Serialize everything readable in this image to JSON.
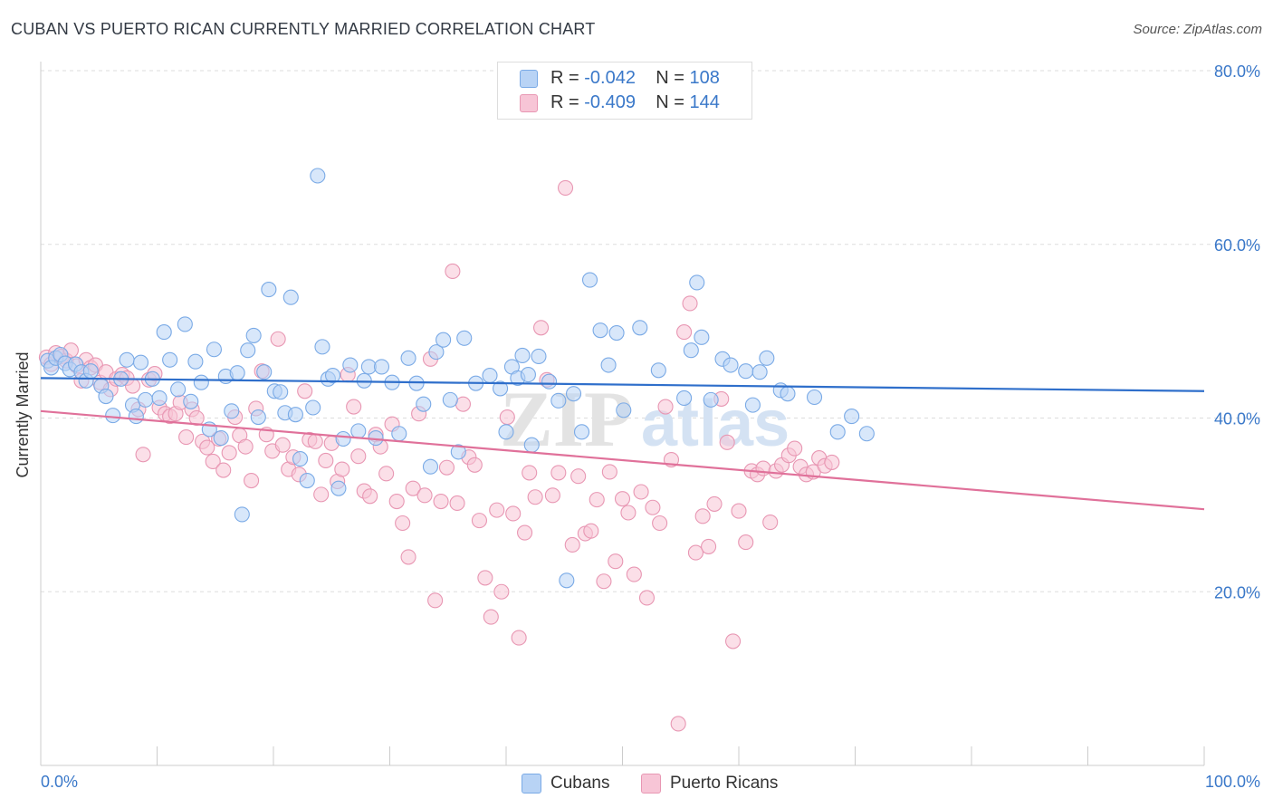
{
  "header": {
    "title": "CUBAN VS PUERTO RICAN CURRENTLY MARRIED CORRELATION CHART",
    "source": "Source: ZipAtlas.com"
  },
  "legend": {
    "rows": [
      {
        "r_label": "R = ",
        "r_value": "-0.042",
        "n_label": "N = ",
        "n_value": "108"
      },
      {
        "r_label": "R = ",
        "r_value": "-0.409",
        "n_label": "N = ",
        "n_value": "144"
      }
    ]
  },
  "watermark": {
    "zip": "ZIP",
    "atlas": "atlas"
  },
  "colors": {
    "cuban_fill": "#b8d3f5",
    "cuban_stroke": "#7aaae6",
    "cuban_line": "#2f6fcb",
    "pr_fill": "#f7c5d6",
    "pr_stroke": "#e897b3",
    "pr_line": "#e0719a",
    "grid": "#dddddd",
    "tick_text": "#3a78c9"
  },
  "chart_data": {
    "type": "scatter",
    "title": "CUBAN VS PUERTO RICAN CURRENTLY MARRIED CORRELATION CHART",
    "xlabel": "",
    "ylabel": "Currently Married",
    "xlim": [
      0,
      100
    ],
    "ylim": [
      0,
      80
    ],
    "x_tick_labels": [
      "0.0%",
      "100.0%"
    ],
    "y_ticks": [
      20,
      40,
      60,
      80
    ],
    "y_tick_labels": [
      "20.0%",
      "40.0%",
      "60.0%",
      "80.0%"
    ],
    "grid": true,
    "legend_position": "top-center",
    "series": [
      {
        "name": "Cubans",
        "r": -0.042,
        "n": 108,
        "trend": {
          "x": [
            0,
            100
          ],
          "y": [
            44.6,
            43.1
          ]
        },
        "points": [
          [
            0.6,
            46.6
          ],
          [
            0.9,
            45.8
          ],
          [
            1.3,
            46.9
          ],
          [
            1.7,
            47.3
          ],
          [
            2.1,
            46.3
          ],
          [
            2.5,
            45.6
          ],
          [
            3.0,
            46.2
          ],
          [
            3.5,
            45.3
          ],
          [
            3.9,
            44.3
          ],
          [
            4.3,
            45.4
          ],
          [
            5.2,
            43.7
          ],
          [
            5.6,
            42.5
          ],
          [
            6.2,
            40.3
          ],
          [
            6.9,
            44.5
          ],
          [
            7.4,
            46.7
          ],
          [
            7.9,
            41.5
          ],
          [
            8.2,
            40.2
          ],
          [
            8.6,
            46.4
          ],
          [
            9.0,
            42.1
          ],
          [
            9.6,
            44.5
          ],
          [
            10.2,
            42.3
          ],
          [
            10.6,
            49.9
          ],
          [
            11.1,
            46.7
          ],
          [
            11.8,
            43.3
          ],
          [
            12.4,
            50.8
          ],
          [
            12.9,
            41.9
          ],
          [
            13.3,
            46.5
          ],
          [
            13.8,
            44.1
          ],
          [
            14.5,
            38.7
          ],
          [
            14.9,
            47.9
          ],
          [
            15.5,
            37.7
          ],
          [
            15.9,
            44.8
          ],
          [
            16.4,
            40.8
          ],
          [
            16.9,
            45.2
          ],
          [
            17.3,
            28.9
          ],
          [
            17.8,
            47.8
          ],
          [
            18.3,
            49.5
          ],
          [
            18.7,
            40.1
          ],
          [
            19.2,
            45.3
          ],
          [
            19.6,
            54.8
          ],
          [
            20.1,
            43.1
          ],
          [
            20.6,
            43.0
          ],
          [
            21.0,
            40.6
          ],
          [
            21.5,
            53.9
          ],
          [
            21.9,
            40.4
          ],
          [
            22.3,
            35.3
          ],
          [
            22.9,
            32.8
          ],
          [
            23.4,
            41.2
          ],
          [
            23.8,
            67.9
          ],
          [
            24.2,
            48.2
          ],
          [
            24.7,
            44.5
          ],
          [
            25.1,
            44.9
          ],
          [
            25.6,
            31.9
          ],
          [
            26.0,
            37.6
          ],
          [
            26.6,
            46.1
          ],
          [
            27.3,
            38.5
          ],
          [
            27.8,
            44.3
          ],
          [
            28.2,
            45.9
          ],
          [
            28.8,
            37.7
          ],
          [
            29.3,
            45.9
          ],
          [
            30.2,
            44.1
          ],
          [
            30.8,
            38.2
          ],
          [
            31.6,
            46.9
          ],
          [
            32.3,
            44.0
          ],
          [
            32.9,
            41.6
          ],
          [
            33.5,
            34.4
          ],
          [
            34.0,
            47.6
          ],
          [
            34.6,
            49.0
          ],
          [
            35.2,
            42.1
          ],
          [
            35.9,
            36.1
          ],
          [
            36.4,
            49.2
          ],
          [
            37.4,
            44.0
          ],
          [
            38.6,
            44.9
          ],
          [
            39.5,
            43.4
          ],
          [
            40.0,
            38.4
          ],
          [
            40.5,
            45.9
          ],
          [
            41.0,
            44.6
          ],
          [
            41.4,
            47.2
          ],
          [
            41.9,
            45.0
          ],
          [
            42.2,
            36.9
          ],
          [
            42.8,
            47.1
          ],
          [
            43.7,
            44.2
          ],
          [
            44.5,
            42.0
          ],
          [
            45.2,
            21.3
          ],
          [
            45.8,
            42.8
          ],
          [
            46.5,
            38.4
          ],
          [
            47.2,
            55.9
          ],
          [
            48.1,
            50.1
          ],
          [
            48.8,
            46.1
          ],
          [
            49.5,
            49.8
          ],
          [
            50.1,
            40.9
          ],
          [
            51.5,
            50.4
          ],
          [
            53.1,
            45.5
          ],
          [
            55.3,
            42.3
          ],
          [
            55.9,
            47.8
          ],
          [
            56.4,
            55.6
          ],
          [
            56.8,
            49.3
          ],
          [
            57.6,
            42.1
          ],
          [
            58.6,
            46.8
          ],
          [
            59.3,
            46.1
          ],
          [
            60.6,
            45.4
          ],
          [
            61.2,
            41.5
          ],
          [
            61.8,
            45.3
          ],
          [
            62.4,
            46.9
          ],
          [
            63.6,
            43.2
          ],
          [
            64.2,
            42.8
          ],
          [
            66.5,
            42.4
          ],
          [
            68.5,
            38.4
          ],
          [
            69.7,
            40.2
          ],
          [
            71.0,
            38.2
          ]
        ]
      },
      {
        "name": "Puerto Ricans",
        "r": -0.409,
        "n": 144,
        "trend": {
          "x": [
            0,
            100
          ],
          "y": [
            40.8,
            29.5
          ]
        },
        "points": [
          [
            0.5,
            47.0
          ],
          [
            0.9,
            46.2
          ],
          [
            1.3,
            47.5
          ],
          [
            1.8,
            47.1
          ],
          [
            2.2,
            46.6
          ],
          [
            2.6,
            47.8
          ],
          [
            3.1,
            46.0
          ],
          [
            3.5,
            44.3
          ],
          [
            3.9,
            46.7
          ],
          [
            4.3,
            45.8
          ],
          [
            4.7,
            46.1
          ],
          [
            5.1,
            44.1
          ],
          [
            5.6,
            45.3
          ],
          [
            6.0,
            43.3
          ],
          [
            6.5,
            44.5
          ],
          [
            7.0,
            45.0
          ],
          [
            7.4,
            44.6
          ],
          [
            7.9,
            43.7
          ],
          [
            8.4,
            41.0
          ],
          [
            8.8,
            35.8
          ],
          [
            9.3,
            44.4
          ],
          [
            9.8,
            45.1
          ],
          [
            10.2,
            41.2
          ],
          [
            10.7,
            40.5
          ],
          [
            11.1,
            40.2
          ],
          [
            11.6,
            40.5
          ],
          [
            12.0,
            41.8
          ],
          [
            12.5,
            37.8
          ],
          [
            13.0,
            41.0
          ],
          [
            13.4,
            40.0
          ],
          [
            13.9,
            37.3
          ],
          [
            14.3,
            36.6
          ],
          [
            14.8,
            35.0
          ],
          [
            15.3,
            37.6
          ],
          [
            15.7,
            34.0
          ],
          [
            16.2,
            36.0
          ],
          [
            16.7,
            40.1
          ],
          [
            17.1,
            38.0
          ],
          [
            17.6,
            36.7
          ],
          [
            18.1,
            32.8
          ],
          [
            18.5,
            41.1
          ],
          [
            19.0,
            45.4
          ],
          [
            19.4,
            38.1
          ],
          [
            19.9,
            36.2
          ],
          [
            20.4,
            49.1
          ],
          [
            20.8,
            36.9
          ],
          [
            21.3,
            34.1
          ],
          [
            21.7,
            35.5
          ],
          [
            22.2,
            33.5
          ],
          [
            22.7,
            43.1
          ],
          [
            23.1,
            37.5
          ],
          [
            23.6,
            37.3
          ],
          [
            24.1,
            31.2
          ],
          [
            24.5,
            35.1
          ],
          [
            25.0,
            37.1
          ],
          [
            25.5,
            32.7
          ],
          [
            25.9,
            34.1
          ],
          [
            26.4,
            45.0
          ],
          [
            26.9,
            41.3
          ],
          [
            27.3,
            35.6
          ],
          [
            27.8,
            31.6
          ],
          [
            28.3,
            31.0
          ],
          [
            28.8,
            38.1
          ],
          [
            29.2,
            36.7
          ],
          [
            29.7,
            33.6
          ],
          [
            30.2,
            39.3
          ],
          [
            30.6,
            30.4
          ],
          [
            31.1,
            27.9
          ],
          [
            31.6,
            24.0
          ],
          [
            32.0,
            31.9
          ],
          [
            32.5,
            40.5
          ],
          [
            33.0,
            31.1
          ],
          [
            33.5,
            46.8
          ],
          [
            33.9,
            19.0
          ],
          [
            34.4,
            30.4
          ],
          [
            34.9,
            34.3
          ],
          [
            35.4,
            56.9
          ],
          [
            35.8,
            30.2
          ],
          [
            36.3,
            41.6
          ],
          [
            36.8,
            35.5
          ],
          [
            37.3,
            34.6
          ],
          [
            37.7,
            28.2
          ],
          [
            38.2,
            21.6
          ],
          [
            38.7,
            17.1
          ],
          [
            39.2,
            29.4
          ],
          [
            39.6,
            20.0
          ],
          [
            40.1,
            40.1
          ],
          [
            40.6,
            29.0
          ],
          [
            41.1,
            14.7
          ],
          [
            41.6,
            26.8
          ],
          [
            42.0,
            33.7
          ],
          [
            42.5,
            30.9
          ],
          [
            43.0,
            50.4
          ],
          [
            43.5,
            44.4
          ],
          [
            44.0,
            31.1
          ],
          [
            44.5,
            33.7
          ],
          [
            45.1,
            66.5
          ],
          [
            45.7,
            25.4
          ],
          [
            46.2,
            33.3
          ],
          [
            46.8,
            26.7
          ],
          [
            47.3,
            27.0
          ],
          [
            47.8,
            30.6
          ],
          [
            48.4,
            21.2
          ],
          [
            48.9,
            33.8
          ],
          [
            49.4,
            23.5
          ],
          [
            50.0,
            30.7
          ],
          [
            50.5,
            29.1
          ],
          [
            51.0,
            22.0
          ],
          [
            51.6,
            31.5
          ],
          [
            52.1,
            19.3
          ],
          [
            52.6,
            29.7
          ],
          [
            53.2,
            27.9
          ],
          [
            53.7,
            41.3
          ],
          [
            54.2,
            35.2
          ],
          [
            54.8,
            4.8
          ],
          [
            55.3,
            49.9
          ],
          [
            55.8,
            53.2
          ],
          [
            56.3,
            24.5
          ],
          [
            56.9,
            28.7
          ],
          [
            57.4,
            25.2
          ],
          [
            57.9,
            30.1
          ],
          [
            58.5,
            42.2
          ],
          [
            59.0,
            37.2
          ],
          [
            59.5,
            14.3
          ],
          [
            60.0,
            29.3
          ],
          [
            60.6,
            25.7
          ],
          [
            61.1,
            33.9
          ],
          [
            61.6,
            33.5
          ],
          [
            62.1,
            34.2
          ],
          [
            62.7,
            28.0
          ],
          [
            63.2,
            33.9
          ],
          [
            63.7,
            34.6
          ],
          [
            64.3,
            35.7
          ],
          [
            64.8,
            36.5
          ],
          [
            65.3,
            34.4
          ],
          [
            65.8,
            33.5
          ],
          [
            66.4,
            33.8
          ],
          [
            66.9,
            35.4
          ],
          [
            67.4,
            34.5
          ],
          [
            68.0,
            34.9
          ]
        ]
      }
    ]
  },
  "bottom_legend": {
    "items": [
      {
        "label": "Cubans"
      },
      {
        "label": "Puerto Ricans"
      }
    ]
  }
}
